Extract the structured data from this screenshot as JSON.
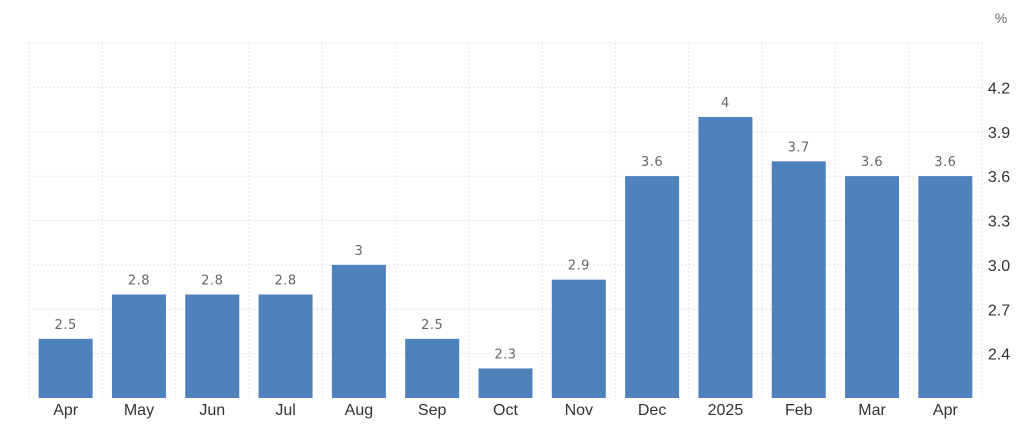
{
  "chart_data": {
    "type": "bar",
    "unit": "%",
    "categories": [
      "Apr",
      "May",
      "Jun",
      "Jul",
      "Aug",
      "Sep",
      "Oct",
      "Nov",
      "Dec",
      "2025",
      "Feb",
      "Mar",
      "Apr"
    ],
    "values": [
      2.5,
      2.8,
      2.8,
      2.8,
      3,
      2.5,
      2.3,
      2.9,
      3.6,
      4,
      3.7,
      3.6,
      3.6
    ],
    "data_labels": [
      "2.5",
      "2.8",
      "2.8",
      "2.8",
      "3",
      "2.5",
      "2.3",
      "2.9",
      "3.6",
      "4",
      "3.7",
      "3.6",
      "3.6"
    ],
    "y_ticks": [
      "2.4",
      "2.7",
      "3.0",
      "3.3",
      "3.6",
      "3.9",
      "4.2"
    ],
    "ylim": [
      2.1,
      4.5
    ],
    "y_axis_position": "right",
    "grid": true,
    "bar_color": "#4f81bd",
    "grid_color": "#e6e6e6"
  }
}
